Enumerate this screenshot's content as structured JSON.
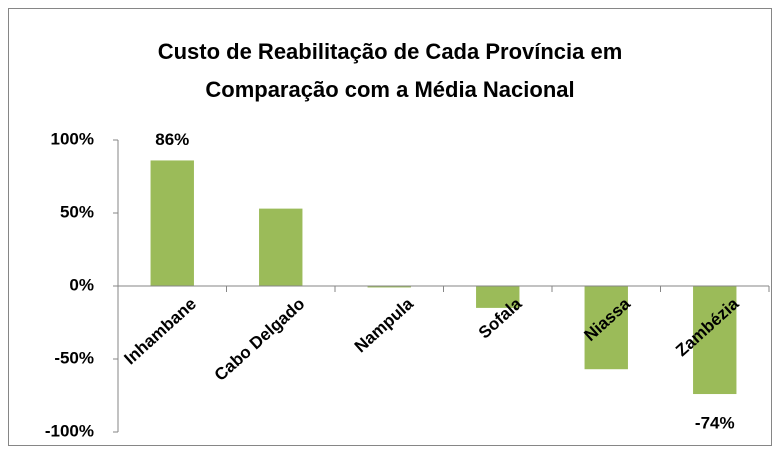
{
  "chart_data": {
    "type": "bar",
    "title": "Custo de Reabilitação de Cada Província em Comparação com a Média Nacional",
    "title_lines": [
      "Custo de Reabilitação de Cada Província em",
      "Comparação com a Média Nacional"
    ],
    "categories": [
      "Inhambane",
      "Cabo Delgado",
      "Nampula",
      "Sofala",
      "Niassa",
      "Zambézia"
    ],
    "values": [
      86,
      53,
      -1,
      -15,
      -57,
      -74
    ],
    "value_labels": [
      "86%",
      null,
      null,
      null,
      null,
      "-74%"
    ],
    "color": "#9bbb59",
    "ylim": [
      -100,
      100
    ],
    "yticks": [
      {
        "value": -100,
        "label": "-100%"
      },
      {
        "value": -50,
        "label": "-50%"
      },
      {
        "value": 0,
        "label": "0%"
      },
      {
        "value": 50,
        "label": "50%"
      },
      {
        "value": 100,
        "label": "100%"
      }
    ],
    "grid": false
  }
}
